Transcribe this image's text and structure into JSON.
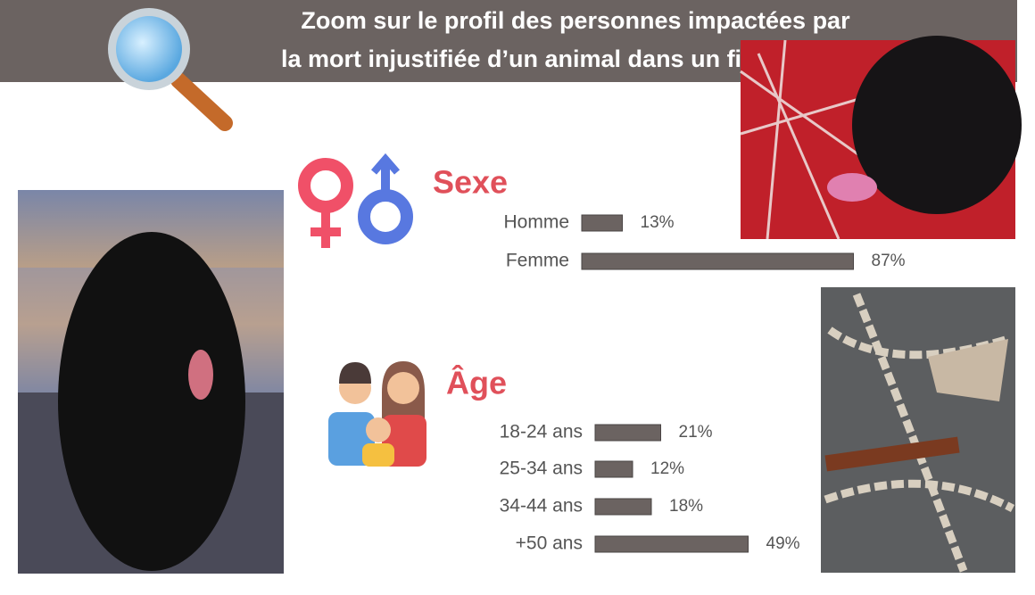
{
  "header": {
    "title_lines": [
      "Zoom sur le profil des personnes impactées par",
      "la mort injustifiée d’un animal dans un film"
    ]
  },
  "chart_data": [
    {
      "type": "bar",
      "title": "Sexe",
      "categories": [
        "Homme",
        "Femme"
      ],
      "values": [
        13,
        87
      ],
      "value_labels": [
        "13%",
        "87%"
      ],
      "color": "#6b6361"
    },
    {
      "type": "bar",
      "title": "Âge",
      "categories": [
        "18-24 ans",
        "25-34 ans",
        "34-44 ans",
        "+50 ans"
      ],
      "values": [
        21,
        12,
        18,
        49
      ],
      "value_labels": [
        "21%",
        "12%",
        "18%",
        "49%"
      ],
      "color": "#6b6361"
    }
  ]
}
